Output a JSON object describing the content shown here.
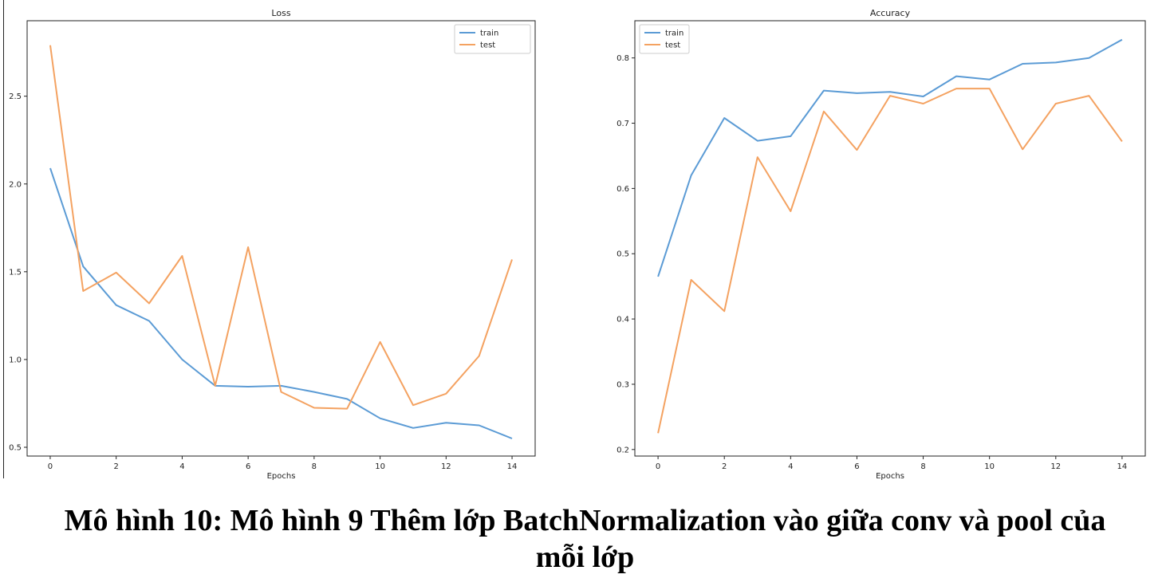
{
  "chart_data": [
    {
      "type": "line",
      "title": "Loss",
      "xlabel": "Epochs",
      "ylabel": "",
      "x": [
        0,
        1,
        2,
        3,
        4,
        5,
        6,
        7,
        8,
        9,
        10,
        11,
        12,
        13,
        14
      ],
      "xlim": [
        -0.7,
        14.7
      ],
      "ylim": [
        0.45,
        2.93
      ],
      "xticks": [
        0,
        2,
        4,
        6,
        8,
        10,
        12,
        14
      ],
      "yticks": [
        0.5,
        1.0,
        1.5,
        2.0,
        2.5
      ],
      "ytick_labels": [
        "0.5",
        "1.0",
        "1.5",
        "2.0",
        "2.5"
      ],
      "legend": "top-right",
      "grid": false,
      "series": [
        {
          "name": "train",
          "color": "#5b9bd5",
          "values": [
            2.09,
            1.53,
            1.31,
            1.22,
            1.0,
            0.85,
            0.845,
            0.85,
            0.815,
            0.775,
            0.665,
            0.61,
            0.64,
            0.625,
            0.55
          ]
        },
        {
          "name": "test",
          "color": "#f4a261",
          "values": [
            2.79,
            1.39,
            1.495,
            1.32,
            1.59,
            0.85,
            1.64,
            0.815,
            0.725,
            0.72,
            1.1,
            0.74,
            0.805,
            1.02,
            1.57
          ]
        }
      ]
    },
    {
      "type": "line",
      "title": "Accuracy",
      "xlabel": "Epochs",
      "ylabel": "",
      "x": [
        0,
        1,
        2,
        3,
        4,
        5,
        6,
        7,
        8,
        9,
        10,
        11,
        12,
        13,
        14
      ],
      "xlim": [
        -0.7,
        14.7
      ],
      "ylim": [
        0.19,
        0.857
      ],
      "xticks": [
        0,
        2,
        4,
        6,
        8,
        10,
        12,
        14
      ],
      "yticks": [
        0.2,
        0.3,
        0.4,
        0.5,
        0.6,
        0.7,
        0.8
      ],
      "ytick_labels": [
        "0.2",
        "0.3",
        "0.4",
        "0.5",
        "0.6",
        "0.7",
        "0.8"
      ],
      "legend": "top-left",
      "grid": false,
      "series": [
        {
          "name": "train",
          "color": "#5b9bd5",
          "values": [
            0.465,
            0.62,
            0.708,
            0.673,
            0.68,
            0.75,
            0.746,
            0.748,
            0.741,
            0.772,
            0.767,
            0.791,
            0.793,
            0.8,
            0.828
          ]
        },
        {
          "name": "test",
          "color": "#f4a261",
          "values": [
            0.225,
            0.46,
            0.412,
            0.648,
            0.565,
            0.718,
            0.659,
            0.742,
            0.73,
            0.753,
            0.753,
            0.66,
            0.73,
            0.742,
            0.672
          ]
        }
      ]
    }
  ],
  "caption": {
    "line1": "Mô hình 10:  Mô hình 9 Thêm lớp BatchNormalization vào giữa conv và pool của",
    "line2": "mỗi lớp"
  }
}
